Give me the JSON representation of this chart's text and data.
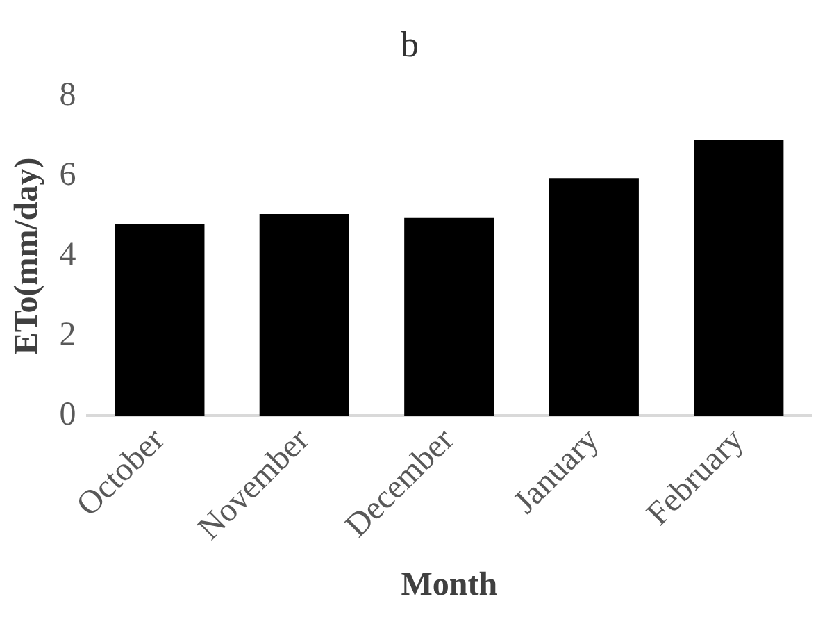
{
  "chart_data": {
    "type": "bar",
    "title": "b",
    "xlabel": "Month",
    "ylabel": "ETo(mm/day)",
    "categories": [
      "October",
      "November",
      "December",
      "January",
      "February"
    ],
    "values": [
      4.8,
      5.05,
      4.95,
      5.95,
      6.9
    ],
    "color": "#000000",
    "ylim": [
      0,
      8
    ],
    "yticks": [
      0,
      2,
      4,
      6,
      8
    ],
    "grid": false,
    "legend": false
  }
}
